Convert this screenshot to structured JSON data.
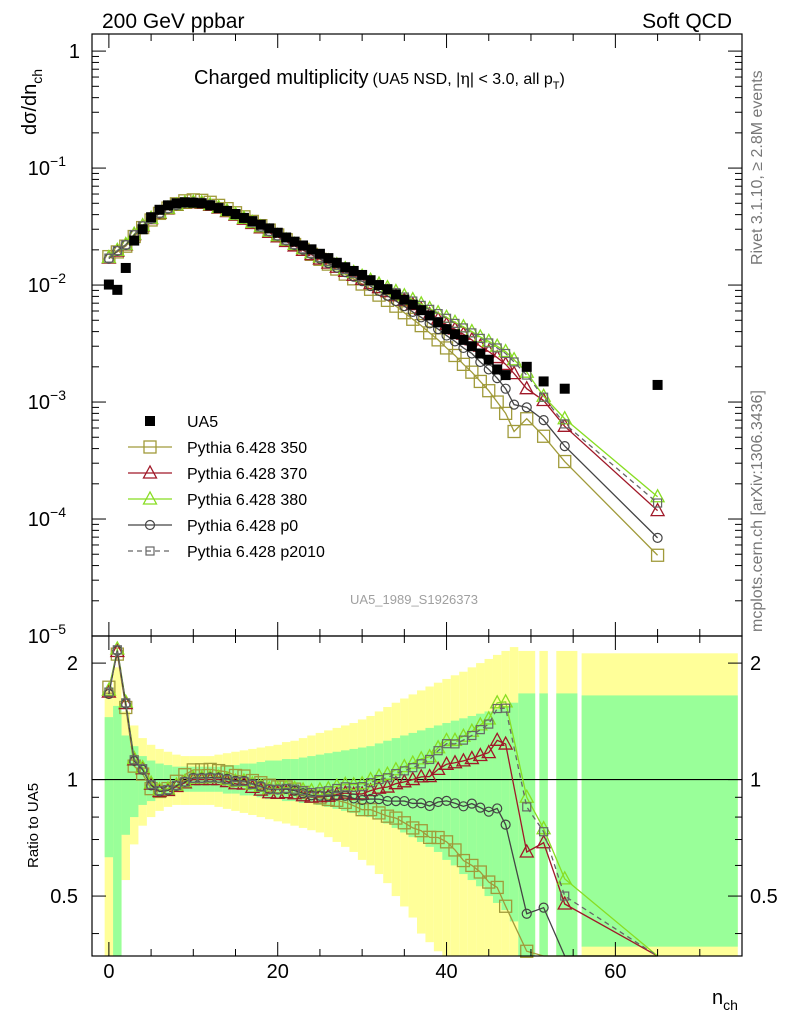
{
  "header": {
    "left": "200 GeV ppbar",
    "right": "Soft QCD"
  },
  "side": {
    "rivet": "Rivet 3.1.10, ≥ 2.8M events",
    "mcplots": "mcplots.cern.ch [arXiv:1306.3436]"
  },
  "chart_data": [
    {
      "type": "scatter",
      "title": "Charged multiplicity",
      "subtitle_pre": "(UA5 NSD, |",
      "subtitle_eta": "η",
      "subtitle_post": "| < 3.0, all p",
      "subtitle_sub": "T",
      "subtitle_close": ")",
      "ylabel_main": "dσ/dn",
      "ylabel_sub": "ch",
      "yscale": "log",
      "ylim": [
        1e-05,
        1.4
      ],
      "xlim": [
        -2,
        75
      ],
      "yticks": [
        {
          "base": "1",
          "exp": ""
        },
        {
          "base": "10",
          "exp": "−1"
        },
        {
          "base": "10",
          "exp": "−2"
        },
        {
          "base": "10",
          "exp": "−3"
        },
        {
          "base": "10",
          "exp": "−4"
        },
        {
          "base": "10",
          "exp": "−5"
        }
      ],
      "watermark": "UA5_1989_S1926373",
      "legend_position": "bottom-left",
      "series": [
        {
          "name": "UA5",
          "color": "#000000",
          "marker": "filled-square",
          "x": [
            0,
            1,
            2,
            3,
            4,
            5,
            6,
            7,
            8,
            9,
            10,
            11,
            12,
            13,
            14,
            15,
            16,
            17,
            18,
            19,
            20,
            21,
            22,
            23,
            24,
            25,
            26,
            27,
            28,
            29,
            30,
            31,
            32,
            33,
            34,
            35,
            36,
            37,
            38,
            39,
            40,
            41,
            42,
            43,
            44,
            45,
            46,
            47,
            49.5,
            51.5,
            54,
            65
          ],
          "y": [
            0.0101,
            0.0091,
            0.014,
            0.024,
            0.03,
            0.038,
            0.044,
            0.048,
            0.05,
            0.051,
            0.0505,
            0.05,
            0.048,
            0.0455,
            0.043,
            0.0405,
            0.0375,
            0.0352,
            0.0328,
            0.0305,
            0.028,
            0.0255,
            0.0235,
            0.0218,
            0.0202,
            0.0185,
            0.017,
            0.0155,
            0.0142,
            0.0132,
            0.0122,
            0.011,
            0.01,
            0.0092,
            0.0083,
            0.0075,
            0.0068,
            0.0061,
            0.0055,
            0.0048,
            0.0042,
            0.0038,
            0.0034,
            0.003,
            0.0026,
            0.0023,
            0.0019,
            0.0017,
            0.002,
            0.0015,
            0.0013,
            0.0014
          ]
        },
        {
          "name": "Pythia 6.428 350",
          "color": "#a09a3a",
          "marker": "open-square",
          "line": "solid",
          "x": [
            0,
            1,
            2,
            3,
            4,
            5,
            6,
            7,
            8,
            9,
            10,
            11,
            12,
            13,
            14,
            15,
            16,
            17,
            18,
            19,
            20,
            21,
            22,
            23,
            24,
            25,
            26,
            27,
            28,
            29,
            30,
            31,
            32,
            33,
            34,
            35,
            36,
            37,
            38,
            39,
            40,
            41,
            42,
            43,
            44,
            45,
            46,
            47,
            48,
            49.5,
            51.5,
            54,
            65
          ],
          "y": [
            0.0175,
            0.0192,
            0.0215,
            0.026,
            0.031,
            0.036,
            0.041,
            0.0455,
            0.0495,
            0.0525,
            0.0535,
            0.053,
            0.051,
            0.048,
            0.045,
            0.0415,
            0.0383,
            0.035,
            0.0322,
            0.0295,
            0.0268,
            0.0244,
            0.0222,
            0.0202,
            0.0183,
            0.0166,
            0.0151,
            0.0137,
            0.0124,
            0.0113,
            0.0102,
            0.0092,
            0.0082,
            0.0074,
            0.0066,
            0.0058,
            0.0051,
            0.0045,
            0.0039,
            0.0034,
            0.0029,
            0.0025,
            0.0021,
            0.0018,
            0.0015,
            0.00125,
            0.001,
            0.0008,
            0.00056,
            0.00072,
            0.00051,
            0.00031,
            4.9e-05
          ]
        },
        {
          "name": "Pythia 6.428 370",
          "color": "#a01828",
          "marker": "open-triangle",
          "line": "solid",
          "x": [
            0,
            1,
            2,
            3,
            4,
            5,
            6,
            7,
            8,
            9,
            10,
            11,
            12,
            13,
            14,
            15,
            16,
            17,
            18,
            19,
            20,
            21,
            22,
            23,
            24,
            25,
            26,
            27,
            28,
            29,
            30,
            31,
            32,
            33,
            34,
            35,
            36,
            37,
            38,
            39,
            40,
            41,
            42,
            43,
            44,
            45,
            46,
            47,
            48,
            49.5,
            51.5,
            54,
            65
          ],
          "y": [
            0.017,
            0.0195,
            0.022,
            0.027,
            0.032,
            0.037,
            0.041,
            0.045,
            0.048,
            0.05,
            0.0505,
            0.05,
            0.048,
            0.0455,
            0.0425,
            0.0395,
            0.0365,
            0.0336,
            0.0308,
            0.0282,
            0.0258,
            0.0236,
            0.0216,
            0.0198,
            0.0182,
            0.0167,
            0.0154,
            0.0142,
            0.0131,
            0.0121,
            0.0112,
            0.0103,
            0.0095,
            0.0088,
            0.0081,
            0.0074,
            0.0068,
            0.0062,
            0.0056,
            0.0051,
            0.0046,
            0.0042,
            0.0038,
            0.0034,
            0.003,
            0.0027,
            0.0024,
            0.0021,
            0.00175,
            0.0013,
            0.00103,
            0.00062,
            0.000118
          ]
        },
        {
          "name": "Pythia 6.428 380",
          "color": "#88dd22",
          "marker": "open-triangle",
          "line": "solid",
          "x": [
            0,
            1,
            2,
            3,
            4,
            5,
            6,
            7,
            8,
            9,
            10,
            11,
            12,
            13,
            14,
            15,
            16,
            17,
            18,
            19,
            20,
            21,
            22,
            23,
            24,
            25,
            26,
            27,
            28,
            29,
            30,
            31,
            32,
            33,
            34,
            35,
            36,
            37,
            38,
            39,
            40,
            41,
            42,
            43,
            44,
            45,
            46,
            47,
            48,
            49.5,
            51.5,
            54,
            65
          ],
          "y": [
            0.0172,
            0.0198,
            0.0222,
            0.0272,
            0.0322,
            0.0372,
            0.0414,
            0.0454,
            0.0484,
            0.0504,
            0.051,
            0.0505,
            0.0486,
            0.0461,
            0.0431,
            0.0401,
            0.0372,
            0.0343,
            0.0315,
            0.0289,
            0.0265,
            0.0243,
            0.0223,
            0.0205,
            0.0189,
            0.0174,
            0.0161,
            0.0149,
            0.0138,
            0.0128,
            0.0119,
            0.011,
            0.0102,
            0.0095,
            0.0088,
            0.0081,
            0.0075,
            0.0069,
            0.0063,
            0.0058,
            0.0053,
            0.0048,
            0.0044,
            0.004,
            0.0036,
            0.0033,
            0.003,
            0.0027,
            0.0023,
            0.0018,
            0.00112,
            0.00072,
            0.000155
          ]
        },
        {
          "name": "Pythia 6.428 p0",
          "color": "#444444",
          "marker": "open-circle",
          "line": "solid",
          "x": [
            0,
            1,
            2,
            3,
            4,
            5,
            6,
            7,
            8,
            9,
            10,
            11,
            12,
            13,
            14,
            15,
            16,
            17,
            18,
            19,
            20,
            21,
            22,
            23,
            24,
            25,
            26,
            27,
            28,
            29,
            30,
            31,
            32,
            33,
            34,
            35,
            36,
            37,
            38,
            39,
            40,
            41,
            42,
            43,
            44,
            45,
            46,
            47,
            48,
            49.5,
            51.5,
            54,
            65
          ],
          "y": [
            0.0168,
            0.0196,
            0.022,
            0.0268,
            0.0318,
            0.0367,
            0.041,
            0.045,
            0.0482,
            0.0503,
            0.051,
            0.0505,
            0.0486,
            0.046,
            0.0432,
            0.0402,
            0.0372,
            0.0343,
            0.0315,
            0.0288,
            0.0264,
            0.0241,
            0.022,
            0.0201,
            0.0184,
            0.0168,
            0.0154,
            0.0141,
            0.0129,
            0.0118,
            0.0108,
            0.0098,
            0.0089,
            0.0081,
            0.0073,
            0.0066,
            0.0059,
            0.0053,
            0.0047,
            0.0042,
            0.0037,
            0.0033,
            0.0029,
            0.0026,
            0.0022,
            0.0019,
            0.0016,
            0.0013,
            0.00095,
            0.0009,
            0.0007,
            0.00042,
            6.9e-05
          ]
        },
        {
          "name": "Pythia 6.428 p2010",
          "color": "#666666",
          "marker": "open-square-small",
          "line": "dashed",
          "x": [
            0,
            1,
            2,
            3,
            4,
            5,
            6,
            7,
            8,
            9,
            10,
            11,
            12,
            13,
            14,
            15,
            16,
            17,
            18,
            19,
            20,
            21,
            22,
            23,
            24,
            25,
            26,
            27,
            28,
            29,
            30,
            31,
            32,
            33,
            34,
            35,
            36,
            37,
            38,
            39,
            40,
            41,
            42,
            43,
            44,
            45,
            46,
            47,
            48,
            49.5,
            51.5,
            54,
            65
          ],
          "y": [
            0.017,
            0.0197,
            0.0221,
            0.027,
            0.032,
            0.0369,
            0.0412,
            0.0452,
            0.0483,
            0.0503,
            0.0509,
            0.0504,
            0.0485,
            0.0459,
            0.043,
            0.04,
            0.0371,
            0.0342,
            0.0314,
            0.0288,
            0.0264,
            0.0242,
            0.0222,
            0.0204,
            0.0187,
            0.0172,
            0.0159,
            0.0147,
            0.0136,
            0.0126,
            0.0117,
            0.0108,
            0.01,
            0.0093,
            0.0086,
            0.0079,
            0.0073,
            0.0067,
            0.0062,
            0.0057,
            0.0052,
            0.0047,
            0.0043,
            0.0039,
            0.0035,
            0.0032,
            0.0029,
            0.0026,
            0.0022,
            0.0017,
            0.0011,
            0.00065,
            0.000137
          ]
        }
      ]
    },
    {
      "type": "line",
      "ylabel": "Ratio to UA5",
      "xlabel_main": "n",
      "xlabel_sub": "ch",
      "xlim": [
        -2,
        75
      ],
      "ylim": [
        0.35,
        2.35
      ],
      "yscale": "log",
      "yticks": [
        "2",
        "1",
        "0.5"
      ],
      "xticks": [
        "0",
        "20",
        "40",
        "60"
      ],
      "reference_line": 1,
      "bands": {
        "x_edges": [
          -0.5,
          0.5,
          1.5,
          2.5,
          3.5,
          4.5,
          5.5,
          6.5,
          7.5,
          8.5,
          9.5,
          10.5,
          11.5,
          12.5,
          13.5,
          14.5,
          15.5,
          16.5,
          17.5,
          18.5,
          19.5,
          20.5,
          21.5,
          22.5,
          23.5,
          24.5,
          25.5,
          26.5,
          27.5,
          28.5,
          29.5,
          30.5,
          31.5,
          32.5,
          33.5,
          34.5,
          35.5,
          36.5,
          37.5,
          38.5,
          39.5,
          40.5,
          41.5,
          42.5,
          43.5,
          44.5,
          45.5,
          46.5,
          47.5,
          48.5
        ],
        "green_lo": [
          0.63,
          0.35,
          0.72,
          0.8,
          0.86,
          0.88,
          0.9,
          0.92,
          0.93,
          0.93,
          0.93,
          0.93,
          0.93,
          0.93,
          0.92,
          0.92,
          0.91,
          0.91,
          0.9,
          0.89,
          0.89,
          0.88,
          0.88,
          0.87,
          0.87,
          0.86,
          0.85,
          0.84,
          0.83,
          0.82,
          0.81,
          0.8,
          0.79,
          0.77,
          0.75,
          0.73,
          0.71,
          0.69,
          0.67,
          0.65,
          0.62,
          0.6,
          0.57,
          0.55,
          0.53,
          0.5,
          0.48,
          0.46,
          0.43
        ],
        "green_hi": [
          1.45,
          1.55,
          1.3,
          1.22,
          1.15,
          1.12,
          1.1,
          1.09,
          1.08,
          1.08,
          1.08,
          1.08,
          1.08,
          1.08,
          1.09,
          1.09,
          1.1,
          1.1,
          1.11,
          1.12,
          1.12,
          1.13,
          1.13,
          1.14,
          1.15,
          1.16,
          1.17,
          1.18,
          1.19,
          1.2,
          1.21,
          1.22,
          1.24,
          1.26,
          1.28,
          1.3,
          1.32,
          1.34,
          1.36,
          1.38,
          1.4,
          1.42,
          1.44,
          1.46,
          1.48,
          1.5,
          1.52,
          1.55,
          1.58
        ],
        "yellow_lo": [
          0.35,
          0.35,
          0.55,
          0.68,
          0.76,
          0.8,
          0.83,
          0.85,
          0.86,
          0.86,
          0.86,
          0.86,
          0.86,
          0.85,
          0.84,
          0.83,
          0.82,
          0.81,
          0.8,
          0.79,
          0.78,
          0.77,
          0.76,
          0.75,
          0.74,
          0.73,
          0.71,
          0.69,
          0.67,
          0.65,
          0.62,
          0.6,
          0.57,
          0.54,
          0.5,
          0.47,
          0.44,
          0.4,
          0.38,
          0.36,
          0.35,
          0.35,
          0.35,
          0.35,
          0.35,
          0.35,
          0.35,
          0.35,
          0.35
        ],
        "yellow_hi": [
          1.7,
          1.95,
          1.5,
          1.38,
          1.28,
          1.23,
          1.2,
          1.18,
          1.16,
          1.15,
          1.15,
          1.15,
          1.15,
          1.16,
          1.17,
          1.18,
          1.19,
          1.2,
          1.21,
          1.22,
          1.23,
          1.25,
          1.26,
          1.28,
          1.3,
          1.32,
          1.34,
          1.36,
          1.38,
          1.4,
          1.43,
          1.46,
          1.5,
          1.54,
          1.58,
          1.62,
          1.66,
          1.7,
          1.74,
          1.78,
          1.82,
          1.86,
          1.9,
          1.95,
          2.0,
          2.05,
          2.1,
          2.15,
          2.2
        ]
      },
      "wide_bins": [
        {
          "x0": 48.5,
          "x1": 50.5,
          "green": [
            0.35,
            1.67
          ],
          "yellow": [
            0.35,
            2.15
          ]
        },
        {
          "x0": 51,
          "x1": 52,
          "green": [
            0.35,
            1.67
          ],
          "yellow": [
            0.35,
            2.15
          ]
        },
        {
          "x0": 53,
          "x1": 55.5,
          "green": [
            0.35,
            1.67
          ],
          "yellow": [
            0.35,
            2.15
          ]
        },
        {
          "x0": 56,
          "x1": 74.5,
          "green": [
            0.37,
            1.65
          ],
          "yellow": [
            0.35,
            2.12
          ]
        }
      ]
    }
  ]
}
